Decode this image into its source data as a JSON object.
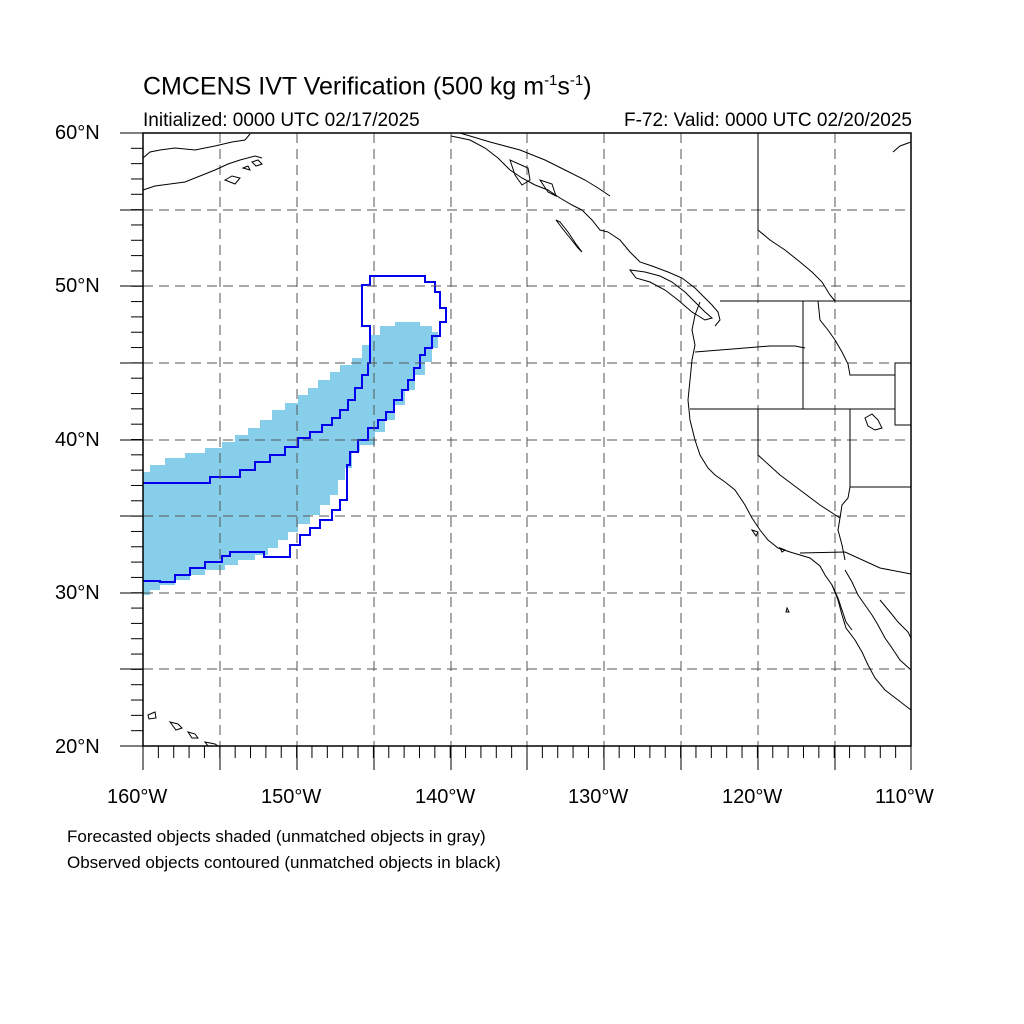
{
  "title": {
    "prefix": "CMCENS IVT Verification (500 kg m",
    "exp1": "-1",
    "mid": "s",
    "exp2": "-1",
    "suffix": ")"
  },
  "initialized": "Initialized: 0000 UTC 02/17/2025",
  "valid": "F-72: Valid: 0000 UTC 02/20/2025",
  "lat_labels": [
    "60°N",
    "50°N",
    "40°N",
    "30°N",
    "20°N"
  ],
  "lon_labels": [
    "160°W",
    "150°W",
    "140°W",
    "130°W",
    "120°W",
    "110°W"
  ],
  "notes": {
    "forecast": "Forecasted objects shaded (unmatched objects in gray)",
    "observed": "Observed objects contoured (unmatched objects in black)"
  },
  "colors": {
    "forecast_fill": "#87ceeb",
    "observed_contour": "#0000ee",
    "coastline": "#000000",
    "grid": "#555555"
  },
  "map_extent": {
    "lon": [
      -160,
      -110
    ],
    "lat": [
      20,
      60
    ]
  }
}
